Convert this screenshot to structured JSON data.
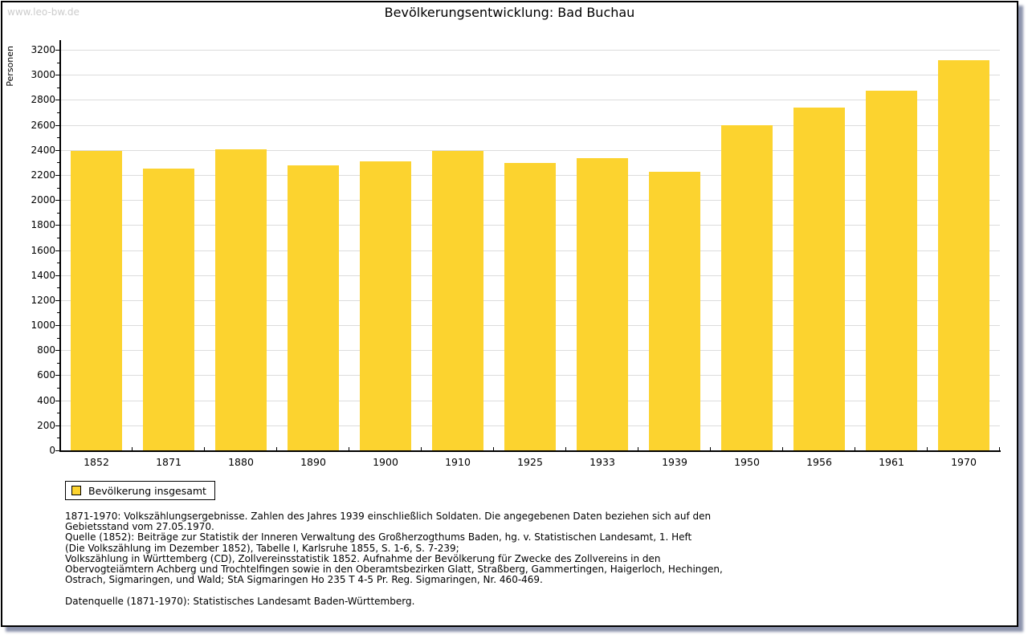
{
  "watermark": "www.leo-bw.de",
  "title": "Bevölkerungsentwicklung: Bad Buchau",
  "chart_data": {
    "type": "bar",
    "title": "Bevölkerungsentwicklung: Bad Buchau",
    "xlabel": "",
    "ylabel": "Personen",
    "categories": [
      "1852",
      "1871",
      "1880",
      "1890",
      "1900",
      "1910",
      "1925",
      "1933",
      "1939",
      "1950",
      "1956",
      "1961",
      "1970"
    ],
    "values": [
      2390,
      2250,
      2405,
      2275,
      2310,
      2390,
      2295,
      2335,
      2225,
      2595,
      2740,
      2875,
      3115
    ],
    "series_name": "Bevölkerung insgesamt",
    "ylim": [
      0,
      3200
    ],
    "ytick_step": 200,
    "ytick_minor_step": 100,
    "grid": true,
    "bar_color": "#fcd32f",
    "gridline_color": "#dcdcdc",
    "legend_position": "bottom-left"
  },
  "legend": {
    "label": "Bevölkerung insgesamt",
    "swatch_color": "#fcd32f"
  },
  "footer": {
    "lines": [
      "1871-1970: Volkszählungsergebnisse. Zahlen des Jahres 1939 einschließlich Soldaten. Die angegebenen Daten beziehen sich auf den",
      "Gebietsstand vom 27.05.1970.",
      "Quelle (1852): Beiträge zur Statistik der Inneren Verwaltung des Großherzogthums Baden, hg. v. Statistischen Landesamt, 1. Heft",
      "(Die Volkszählung im Dezember 1852), Tabelle I, Karlsruhe 1855, S. 1-6, S. 7-239;",
      "Volkszählung in Württemberg (CD), Zollvereinsstatistik 1852. Aufnahme der Bevölkerung für Zwecke des Zollvereins in den",
      "Obervogteiämtern Achberg und Trochtelfingen sowie in den Oberamtsbezirken Glatt, Straßberg, Gammertingen, Haigerloch, Hechingen,",
      "Ostrach, Sigmaringen, und Wald; StA Sigmaringen Ho 235 T 4-5 Pr. Reg. Sigmaringen, Nr. 460-469."
    ],
    "datasource": "Datenquelle (1871-1970): Statistisches Landesamt Baden-Württemberg."
  }
}
